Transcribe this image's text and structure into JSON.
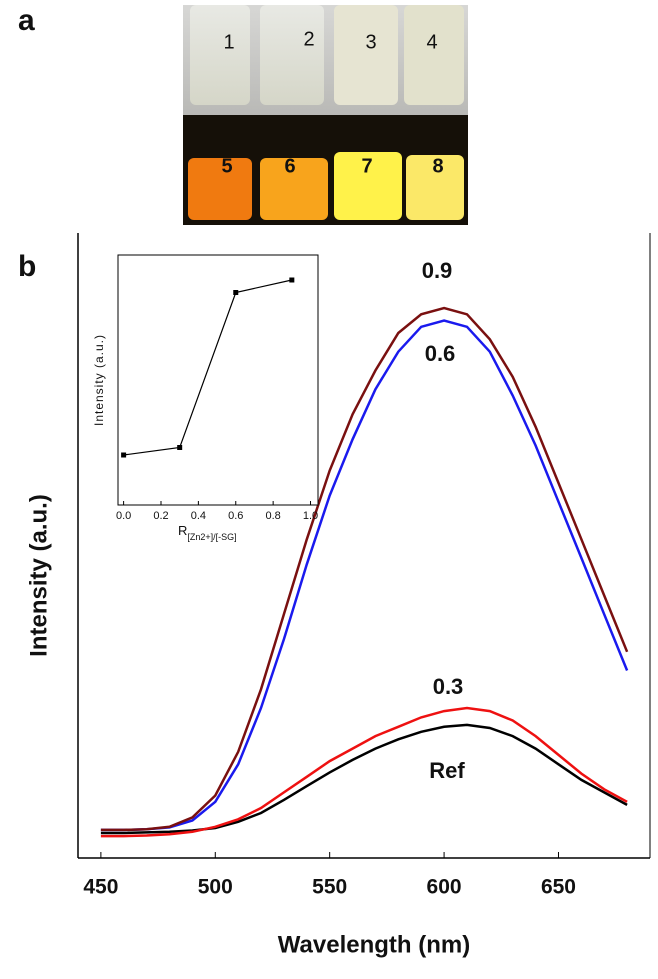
{
  "panel_labels": [
    "a",
    "b"
  ],
  "photo": {
    "vial_labels": [
      "1",
      "2",
      "3",
      "4",
      "5",
      "6",
      "7",
      "8"
    ]
  },
  "chart_data": [
    {
      "type": "line",
      "xlabel": "Wavelength (nm)",
      "ylabel": "Intensity (a.u.)",
      "x": [
        450,
        460,
        470,
        480,
        490,
        500,
        510,
        520,
        530,
        540,
        550,
        560,
        570,
        580,
        590,
        600,
        610,
        620,
        630,
        640,
        650,
        660,
        670,
        680
      ],
      "xlim": [
        440,
        690
      ],
      "xticks": [
        450,
        500,
        550,
        600,
        650
      ],
      "ylim": [
        0,
        100
      ],
      "series": [
        {
          "name": "Ref",
          "color": "#000000",
          "values": [
            4,
            4,
            4.1,
            4.2,
            4.4,
            4.8,
            5.8,
            7.2,
            9.3,
            11.5,
            13.7,
            15.7,
            17.5,
            19,
            20.2,
            21,
            21.3,
            20.8,
            19.5,
            17.5,
            15,
            12.5,
            10.5,
            8.5
          ]
        },
        {
          "name": "0.3",
          "color": "#ee1111",
          "values": [
            3.5,
            3.5,
            3.6,
            3.8,
            4.2,
            5,
            6.2,
            8,
            10.5,
            13,
            15.5,
            17.5,
            19.5,
            21,
            22.5,
            23.5,
            24,
            23.5,
            22,
            19.5,
            16.5,
            13.5,
            11,
            9
          ]
        },
        {
          "name": "0.6",
          "color": "#1a1aee",
          "values": [
            4.5,
            4.5,
            4.6,
            4.9,
            6,
            9,
            15,
            24,
            35,
            47,
            58,
            67,
            75,
            81,
            85,
            86,
            85,
            81,
            74,
            66,
            57,
            48,
            39,
            30
          ]
        },
        {
          "name": "0.9",
          "color": "#7a1010",
          "values": [
            4.5,
            4.5,
            4.6,
            5,
            6.5,
            10,
            17,
            27,
            39,
            51,
            62,
            71,
            78,
            84,
            87,
            88,
            87,
            83,
            77,
            69,
            60,
            51,
            42,
            33
          ]
        }
      ]
    },
    {
      "type": "line",
      "xlabel": "R",
      "xlabel_subscript": "[Zn2+]/[-SG]",
      "ylabel": "Intensity (a.u.)",
      "x": [
        0,
        0.3,
        0.6,
        0.9
      ],
      "values": [
        0.2,
        0.23,
        0.85,
        0.9
      ],
      "color": "#000000",
      "xlim": [
        -0.03,
        1.04
      ],
      "ylim": [
        0,
        1
      ],
      "xticks": [
        {
          "value": 0,
          "label": "0.0"
        },
        {
          "value": 0.2,
          "label": "0.2"
        },
        {
          "value": 0.4,
          "label": "0.4"
        },
        {
          "value": 0.6,
          "label": "0.6"
        },
        {
          "value": 0.8,
          "label": "0.8"
        },
        {
          "value": 1,
          "label": "1.0"
        }
      ]
    }
  ]
}
